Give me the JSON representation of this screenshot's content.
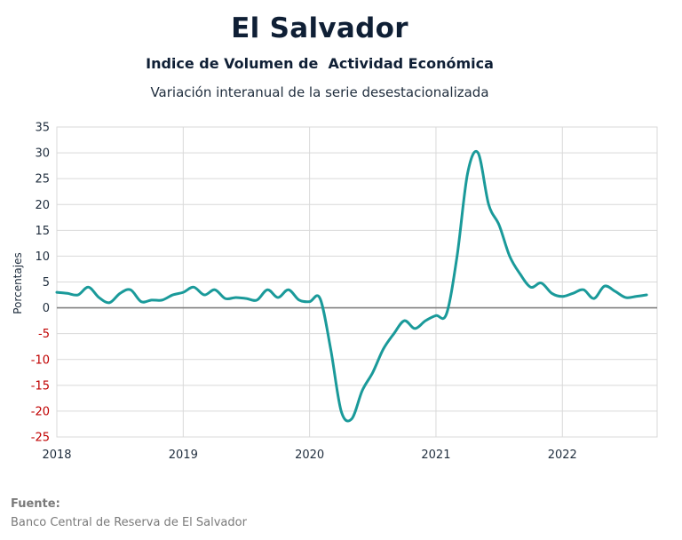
{
  "header": {
    "title": "El Salvador",
    "subtitle": "Indice de Volumen de  Actividad Económica",
    "subtitle2": "Variación interanual de la serie desestacionalizada"
  },
  "source": {
    "label": "Fuente:",
    "text": "Banco Central de Reserva de El Salvador"
  },
  "colors": {
    "line": "#1a9a9a",
    "grid": "#d9d9d9",
    "zero_line": "#808080",
    "negative_tick": "#c00000",
    "positive_tick": "#1f2d3d"
  },
  "chart_data": {
    "type": "line",
    "title": "Variación interanual de la serie desestacionalizada",
    "ylabel": "Porcentajes",
    "xlabel": "",
    "ylim": [
      -25,
      35
    ],
    "xlim": [
      2018,
      2022.75
    ],
    "yticks": [
      35,
      30,
      25,
      20,
      15,
      10,
      5,
      0,
      -5,
      -10,
      -15,
      -20,
      -25
    ],
    "xticks": [
      "2018",
      "2019",
      "2020",
      "2021",
      "2022"
    ],
    "grid": true,
    "series": [
      {
        "name": "",
        "x": [
          2018.0,
          2018.083,
          2018.167,
          2018.25,
          2018.333,
          2018.417,
          2018.5,
          2018.583,
          2018.667,
          2018.75,
          2018.833,
          2018.917,
          2019.0,
          2019.083,
          2019.167,
          2019.25,
          2019.333,
          2019.417,
          2019.5,
          2019.583,
          2019.667,
          2019.75,
          2019.833,
          2019.917,
          2020.0,
          2020.083,
          2020.167,
          2020.25,
          2020.333,
          2020.417,
          2020.5,
          2020.583,
          2020.667,
          2020.75,
          2020.833,
          2020.917,
          2021.0,
          2021.083,
          2021.167,
          2021.25,
          2021.333,
          2021.417,
          2021.5,
          2021.583,
          2021.667,
          2021.75,
          2021.833,
          2021.917,
          2022.0,
          2022.083,
          2022.167,
          2022.25,
          2022.333,
          2022.417,
          2022.5,
          2022.583,
          2022.667
        ],
        "y": [
          3.0,
          2.8,
          2.5,
          4.0,
          2.0,
          1.0,
          2.8,
          3.5,
          1.2,
          1.5,
          1.5,
          2.5,
          3.0,
          4.0,
          2.5,
          3.5,
          1.8,
          2.0,
          1.8,
          1.5,
          3.5,
          2.0,
          3.5,
          1.5,
          1.2,
          1.8,
          -8.0,
          -20.0,
          -21.5,
          -16.0,
          -12.5,
          -8.0,
          -5.0,
          -2.5,
          -4.0,
          -2.5,
          -1.5,
          -1.2,
          10.0,
          26.0,
          30.0,
          20.0,
          16.0,
          10.0,
          6.5,
          4.0,
          4.8,
          2.8,
          2.2,
          2.8,
          3.5,
          1.8,
          4.2,
          3.2,
          2.0,
          2.2,
          2.5
        ]
      }
    ]
  }
}
